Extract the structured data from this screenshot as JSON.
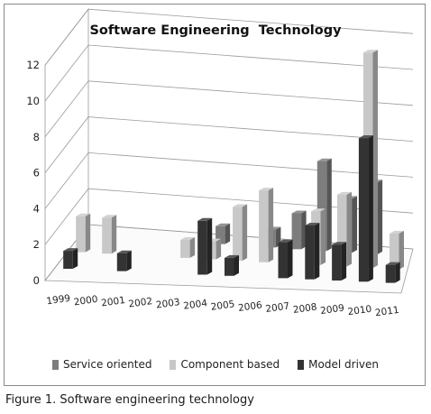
{
  "chart_data": {
    "type": "bar",
    "title": "Software Engineering  Technology",
    "categories": [
      "1999",
      "2000",
      "2001",
      "2002",
      "2003",
      "2004",
      "2005",
      "2006",
      "2007",
      "2008",
      "2009",
      "2010",
      "2011"
    ],
    "series": [
      {
        "name": "Service oriented",
        "color": "#7d7d7d",
        "values": [
          0,
          0,
          0,
          0,
          0,
          1,
          0,
          1,
          2,
          5,
          3,
          4,
          0
        ]
      },
      {
        "name": "Component based",
        "color": "#c8c8c8",
        "values": [
          2,
          2,
          0,
          0,
          1,
          1,
          3,
          4,
          0,
          3,
          4,
          12,
          2
        ]
      },
      {
        "name": "Model driven",
        "color": "#333333",
        "values": [
          1,
          0,
          1,
          0,
          0,
          3,
          1,
          0,
          2,
          3,
          2,
          8,
          1
        ]
      }
    ],
    "yticks": [
      0,
      2,
      4,
      6,
      8,
      10,
      12
    ],
    "ylim": [
      0,
      12
    ],
    "xlabel": "",
    "ylabel": "",
    "legend_position": "bottom",
    "grid": true,
    "view": "3d-perspective"
  },
  "caption": "Figure 1. Software engineering technology"
}
